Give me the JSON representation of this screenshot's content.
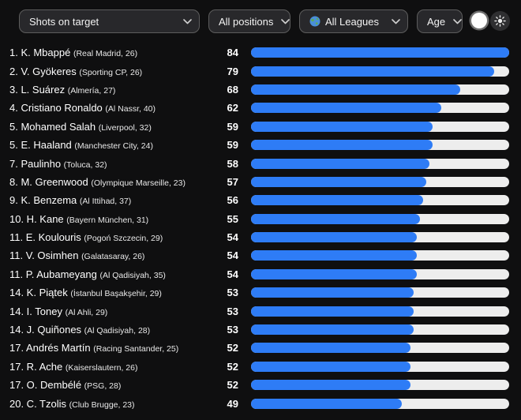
{
  "colors": {
    "accent_blue": "#2e7cf6",
    "bar_track": "#ededed",
    "background": "#0f0f10"
  },
  "header": {
    "filters": [
      {
        "id": "metric",
        "label": "Shots on target"
      },
      {
        "id": "positions",
        "label": "All positions"
      },
      {
        "id": "leagues",
        "label": "All Leagues",
        "icon": "globe-icon"
      },
      {
        "id": "age",
        "label": "Age"
      }
    ],
    "theme_controls": {
      "light_toggle": "white-circle-toggle",
      "theme_button": "sun-icon"
    }
  },
  "rows": [
    {
      "rank": "1",
      "name": "K. Mbappé",
      "club": "Real Madrid",
      "age": "26",
      "value": 84
    },
    {
      "rank": "2",
      "name": "V. Gyökeres",
      "club": "Sporting CP",
      "age": "26",
      "value": 79
    },
    {
      "rank": "3",
      "name": "L. Suárez",
      "club": "Almería",
      "age": "27",
      "value": 68
    },
    {
      "rank": "4",
      "name": "Cristiano Ronaldo",
      "club": "Al Nassr",
      "age": "40",
      "value": 62
    },
    {
      "rank": "5",
      "name": "Mohamed Salah",
      "club": "Liverpool",
      "age": "32",
      "value": 59
    },
    {
      "rank": "5",
      "name": "E. Haaland",
      "club": "Manchester City",
      "age": "24",
      "value": 59
    },
    {
      "rank": "7",
      "name": "Paulinho",
      "club": "Toluca",
      "age": "32",
      "value": 58
    },
    {
      "rank": "8",
      "name": "M. Greenwood",
      "club": "Olympique Marseille",
      "age": "23",
      "value": 57
    },
    {
      "rank": "9",
      "name": "K. Benzema",
      "club": "Al Ittihad",
      "age": "37",
      "value": 56
    },
    {
      "rank": "10",
      "name": "H. Kane",
      "club": "Bayern München",
      "age": "31",
      "value": 55
    },
    {
      "rank": "11",
      "name": "E. Koulouris",
      "club": "Pogoń Szczecin",
      "age": "29",
      "value": 54
    },
    {
      "rank": "11",
      "name": "V. Osimhen",
      "club": "Galatasaray",
      "age": "26",
      "value": 54
    },
    {
      "rank": "11",
      "name": "P. Aubameyang",
      "club": "Al Qadisiyah",
      "age": "35",
      "value": 54
    },
    {
      "rank": "14",
      "name": "K. Piątek",
      "club": "İstanbul Başakşehir",
      "age": "29",
      "value": 53
    },
    {
      "rank": "14",
      "name": "I. Toney",
      "club": "Al Ahli",
      "age": "29",
      "value": 53
    },
    {
      "rank": "14",
      "name": "J. Quiñones",
      "club": "Al Qadisiyah",
      "age": "28",
      "value": 53
    },
    {
      "rank": "17",
      "name": "Andrés Martín",
      "club": "Racing Santander",
      "age": "25",
      "value": 52
    },
    {
      "rank": "17",
      "name": "R. Ache",
      "club": "Kaiserslautern",
      "age": "26",
      "value": 52
    },
    {
      "rank": "17",
      "name": "O. Dembélé",
      "club": "PSG",
      "age": "28",
      "value": 52
    },
    {
      "rank": "20",
      "name": "C. Tzolis",
      "club": "Club Brugge",
      "age": "23",
      "value": 49
    }
  ],
  "chart_data": {
    "type": "bar",
    "orientation": "horizontal",
    "title": "Shots on target",
    "max": 84,
    "categories": [
      "K. Mbappé",
      "V. Gyökeres",
      "L. Suárez",
      "Cristiano Ronaldo",
      "Mohamed Salah",
      "E. Haaland",
      "Paulinho",
      "M. Greenwood",
      "K. Benzema",
      "H. Kane",
      "E. Koulouris",
      "V. Osimhen",
      "P. Aubameyang",
      "K. Piątek",
      "I. Toney",
      "J. Quiñones",
      "Andrés Martín",
      "R. Ache",
      "O. Dembélé",
      "C. Tzolis"
    ],
    "values": [
      84,
      79,
      68,
      62,
      59,
      59,
      58,
      57,
      56,
      55,
      54,
      54,
      54,
      53,
      53,
      53,
      52,
      52,
      52,
      49
    ]
  }
}
